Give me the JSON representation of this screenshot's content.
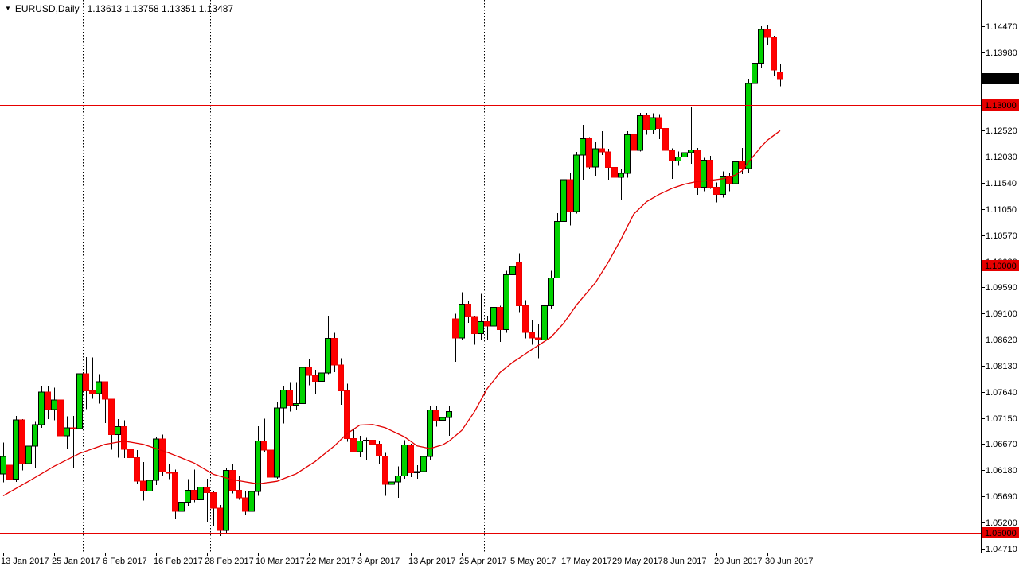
{
  "window": {
    "marker": "▼",
    "title_symbol": "EURUSD,Daily",
    "title_quotes": "1.13613 1.13758 1.13351 1.13487"
  },
  "colors": {
    "background": "#ffffff",
    "bull_body": "#00d200",
    "bull_border": "#000000",
    "bear_body": "#ff0000",
    "bear_border": "#ee0000",
    "wick": "#000000",
    "ma_line": "#e10000",
    "level_line": "#e60000",
    "level_tag_bg": "#e60000",
    "level_tag_fg": "#ffffff",
    "price_tag_bg": "#000000",
    "price_tag_fg": "#ffffff",
    "axis_line": "#000000",
    "axis_text": "#000000",
    "separator": "#000000"
  },
  "price_axis": {
    "tick_labels": [
      "1.14470",
      "1.13980",
      "1.13490",
      "1.13000",
      "1.12520",
      "1.12030",
      "1.11540",
      "1.11050",
      "1.10570",
      "1.10080",
      "1.09590",
      "1.09100",
      "1.08620",
      "1.08130",
      "1.07640",
      "1.07150",
      "1.06670",
      "1.06180",
      "1.05690",
      "1.05200",
      "1.04710"
    ]
  },
  "time_axis": {
    "step_bars": 8,
    "labels": [
      "13 Jan 2017",
      "25 Jan 2017",
      "6 Feb 2017",
      "16 Feb 2017",
      "28 Feb 2017",
      "10 Mar 2017",
      "22 Mar 2017",
      "3 Apr 2017",
      "13 Apr 2017",
      "25 Apr 2017",
      "5 May 2017",
      "17 May 2017",
      "29 May 2017",
      "8 Jun 2017",
      "20 Jun 2017",
      "30 Jun 2017"
    ]
  },
  "chart_data": {
    "type": "candlestick",
    "symbol": "EURUSD",
    "timeframe": "Daily",
    "title": "EURUSD,Daily 1.13613 1.13758 1.13351 1.13487",
    "ylim": [
      1.0471,
      1.1447
    ],
    "grid": "none",
    "legend": "none",
    "month_start_bars": [
      13,
      33,
      56,
      76,
      99,
      121
    ],
    "levels": [
      {
        "price": 1.13,
        "label": "1.13000"
      },
      {
        "price": 1.1,
        "label": "1.10000"
      },
      {
        "price": 1.05,
        "label": "1.05000"
      }
    ],
    "current_price": {
      "value": 1.13487,
      "label": "1.13487"
    },
    "last_bar_ohlc": {
      "open": "1.13613",
      "high": "1.13758",
      "low": "1.13351",
      "close": "1.13487"
    },
    "candles": [
      [
        "13 Jan 2017",
        1.0611,
        1.0669,
        1.0595,
        1.0643
      ],
      [
        "16 Jan 2017",
        1.0627,
        1.0637,
        1.0579,
        1.0601
      ],
      [
        "17 Jan 2017",
        1.0601,
        1.0719,
        1.0596,
        1.0712
      ],
      [
        "18 Jan 2017",
        1.0712,
        1.0713,
        1.0617,
        1.063
      ],
      [
        "19 Jan 2017",
        1.063,
        1.0677,
        1.0588,
        1.0663
      ],
      [
        "20 Jan 2017",
        1.0663,
        1.0708,
        1.0622,
        1.0703
      ],
      [
        "23 Jan 2017",
        1.0703,
        1.0774,
        1.0697,
        1.0764
      ],
      [
        "24 Jan 2017",
        1.0764,
        1.0775,
        1.0713,
        1.0731
      ],
      [
        "25 Jan 2017",
        1.0731,
        1.0772,
        1.0711,
        1.0749
      ],
      [
        "26 Jan 2017",
        1.0749,
        1.0768,
        1.0658,
        1.0682
      ],
      [
        "27 Jan 2017",
        1.0682,
        1.0718,
        1.0657,
        1.0697
      ],
      [
        "30 Jan 2017",
        1.0697,
        1.0719,
        1.0621,
        1.0695
      ],
      [
        "31 Jan 2017",
        1.0695,
        1.0812,
        1.0684,
        1.0798
      ],
      [
        "1 Feb 2017",
        1.0798,
        1.0829,
        1.0732,
        1.0766
      ],
      [
        "2 Feb 2017",
        1.0766,
        1.0828,
        1.0751,
        1.0761
      ],
      [
        "3 Feb 2017",
        1.0761,
        1.0797,
        1.0742,
        1.0783
      ],
      [
        "6 Feb 2017",
        1.0783,
        1.0784,
        1.0706,
        1.075
      ],
      [
        "7 Feb 2017",
        1.075,
        1.0751,
        1.0656,
        1.0684
      ],
      [
        "8 Feb 2017",
        1.0684,
        1.0713,
        1.0641,
        1.0699
      ],
      [
        "9 Feb 2017",
        1.0699,
        1.0711,
        1.064,
        1.0657
      ],
      [
        "10 Feb 2017",
        1.0657,
        1.0684,
        1.0609,
        1.0641
      ],
      [
        "13 Feb 2017",
        1.0641,
        1.0655,
        1.0591,
        1.0597
      ],
      [
        "14 Feb 2017",
        1.0597,
        1.0633,
        1.0561,
        1.0579
      ],
      [
        "15 Feb 2017",
        1.0579,
        1.0601,
        1.0551,
        1.0599
      ],
      [
        "16 Feb 2017",
        1.0599,
        1.0679,
        1.059,
        1.0676
      ],
      [
        "17 Feb 2017",
        1.0676,
        1.0684,
        1.0608,
        1.0614
      ],
      [
        "20 Feb 2017",
        1.0614,
        1.063,
        1.0601,
        1.0613
      ],
      [
        "21 Feb 2017",
        1.0613,
        1.0619,
        1.0526,
        1.0541
      ],
      [
        "22 Feb 2017",
        1.0541,
        1.0575,
        1.0494,
        1.0558
      ],
      [
        "23 Feb 2017",
        1.0558,
        1.0601,
        1.0551,
        1.058
      ],
      [
        "24 Feb 2017",
        1.058,
        1.0619,
        1.0558,
        1.0562
      ],
      [
        "27 Feb 2017",
        1.0562,
        1.0631,
        1.0551,
        1.0586
      ],
      [
        "28 Feb 2017",
        1.0586,
        1.0602,
        1.0521,
        1.0576
      ],
      [
        "1 Mar 2017",
        1.0576,
        1.0579,
        1.0513,
        1.0547
      ],
      [
        "2 Mar 2017",
        1.0547,
        1.0553,
        1.0495,
        1.0505
      ],
      [
        "3 Mar 2017",
        1.0505,
        1.0622,
        1.0501,
        1.0617
      ],
      [
        "6 Mar 2017",
        1.0617,
        1.063,
        1.0574,
        1.058
      ],
      [
        "7 Mar 2017",
        1.058,
        1.0606,
        1.0562,
        1.0566
      ],
      [
        "8 Mar 2017",
        1.0566,
        1.0578,
        1.0535,
        1.0541
      ],
      [
        "9 Mar 2017",
        1.0541,
        1.0615,
        1.0525,
        1.0578
      ],
      [
        "10 Mar 2017",
        1.0578,
        1.07,
        1.057,
        1.0672
      ],
      [
        "13 Mar 2017",
        1.0672,
        1.0714,
        1.0651,
        1.0655
      ],
      [
        "14 Mar 2017",
        1.0655,
        1.0665,
        1.06,
        1.0605
      ],
      [
        "15 Mar 2017",
        1.0605,
        1.0746,
        1.0602,
        1.0734
      ],
      [
        "16 Mar 2017",
        1.0734,
        1.0774,
        1.0705,
        1.0767
      ],
      [
        "17 Mar 2017",
        1.0767,
        1.0782,
        1.0727,
        1.0739
      ],
      [
        "20 Mar 2017",
        1.0739,
        1.0782,
        1.073,
        1.0742
      ],
      [
        "21 Mar 2017",
        1.0742,
        1.0819,
        1.0732,
        1.081
      ],
      [
        "22 Mar 2017",
        1.081,
        1.0825,
        1.0776,
        1.0795
      ],
      [
        "23 Mar 2017",
        1.0795,
        1.0805,
        1.076,
        1.0784
      ],
      [
        "24 Mar 2017",
        1.0784,
        1.0805,
        1.076,
        1.0799
      ],
      [
        "27 Mar 2017",
        1.0799,
        1.0906,
        1.0797,
        1.0864
      ],
      [
        "28 Mar 2017",
        1.0864,
        1.0874,
        1.0801,
        1.0814
      ],
      [
        "29 Mar 2017",
        1.0814,
        1.0827,
        1.074,
        1.0766
      ],
      [
        "30 Mar 2017",
        1.0766,
        1.0779,
        1.0671,
        1.0677
      ],
      [
        "31 Mar 2017",
        1.0677,
        1.0695,
        1.0651,
        1.0652
      ],
      [
        "3 Apr 2017",
        1.0652,
        1.0682,
        1.0642,
        1.0672
      ],
      [
        "4 Apr 2017",
        1.0672,
        1.0678,
        1.0637,
        1.0674
      ],
      [
        "5 Apr 2017",
        1.0674,
        1.069,
        1.0626,
        1.0666
      ],
      [
        "6 Apr 2017",
        1.0666,
        1.0672,
        1.063,
        1.0644
      ],
      [
        "7 Apr 2017",
        1.0644,
        1.065,
        1.057,
        1.0591
      ],
      [
        "10 Apr 2017",
        1.0591,
        1.0605,
        1.0569,
        1.0596
      ],
      [
        "11 Apr 2017",
        1.0596,
        1.0625,
        1.0566,
        1.0607
      ],
      [
        "12 Apr 2017",
        1.0607,
        1.0674,
        1.0602,
        1.0665
      ],
      [
        "13 Apr 2017",
        1.0665,
        1.0667,
        1.0605,
        1.0613
      ],
      [
        "14 Apr 2017",
        1.0613,
        1.0627,
        1.0602,
        1.0615
      ],
      [
        "17 Apr 2017",
        1.0615,
        1.0648,
        1.0601,
        1.0643
      ],
      [
        "18 Apr 2017",
        1.0643,
        1.0737,
        1.0636,
        1.073
      ],
      [
        "19 Apr 2017",
        1.073,
        1.0738,
        1.0699,
        1.0711
      ],
      [
        "20 Apr 2017",
        1.0711,
        1.0778,
        1.0709,
        1.0716
      ],
      [
        "21 Apr 2017",
        1.0716,
        1.0737,
        1.0682,
        1.0727
      ],
      [
        "24 Apr 2017",
        1.09,
        1.091,
        1.082,
        1.0865
      ],
      [
        "25 Apr 2017",
        1.0865,
        1.095,
        1.086,
        1.0928
      ],
      [
        "26 Apr 2017",
        1.0928,
        1.0933,
        1.0893,
        1.0905
      ],
      [
        "27 Apr 2017",
        1.0905,
        1.0906,
        1.0852,
        1.0873
      ],
      [
        "28 Apr 2017",
        1.0873,
        1.0947,
        1.086,
        1.0895
      ],
      [
        "1 May 2017",
        1.0895,
        1.0906,
        1.0861,
        1.0887
      ],
      [
        "2 May 2017",
        1.0887,
        1.0937,
        1.0883,
        1.0922
      ],
      [
        "3 May 2017",
        1.0922,
        1.0925,
        1.0857,
        1.088
      ],
      [
        "4 May 2017",
        1.088,
        1.099,
        1.0874,
        1.0983
      ],
      [
        "5 May 2017",
        1.0983,
        1.1002,
        1.096,
        1.0998
      ],
      [
        "8 May 2017",
        1.1005,
        1.1023,
        1.0913,
        1.0925
      ],
      [
        "9 May 2017",
        1.0925,
        1.0935,
        1.0864,
        1.0875
      ],
      [
        "10 May 2017",
        1.0875,
        1.0897,
        1.0852,
        1.0865
      ],
      [
        "11 May 2017",
        1.0865,
        1.089,
        1.0827,
        1.0861
      ],
      [
        "12 May 2017",
        1.0861,
        1.0935,
        1.0845,
        1.0925
      ],
      [
        "15 May 2017",
        1.0925,
        1.099,
        1.0918,
        1.0977
      ],
      [
        "16 May 2017",
        1.0977,
        1.1098,
        1.0976,
        1.1082
      ],
      [
        "17 May 2017",
        1.1082,
        1.1163,
        1.1077,
        1.116
      ],
      [
        "18 May 2017",
        1.116,
        1.1172,
        1.1075,
        1.1101
      ],
      [
        "19 May 2017",
        1.1101,
        1.1212,
        1.1097,
        1.1206
      ],
      [
        "22 May 2017",
        1.1206,
        1.1263,
        1.116,
        1.1237
      ],
      [
        "23 May 2017",
        1.1237,
        1.124,
        1.118,
        1.1184
      ],
      [
        "24 May 2017",
        1.1184,
        1.123,
        1.1168,
        1.1218
      ],
      [
        "25 May 2017",
        1.1218,
        1.1251,
        1.1206,
        1.1212
      ],
      [
        "26 May 2017",
        1.1212,
        1.1218,
        1.116,
        1.1183
      ],
      [
        "29 May 2017",
        1.1183,
        1.119,
        1.1109,
        1.1165
      ],
      [
        "30 May 2017",
        1.1165,
        1.1181,
        1.1122,
        1.1172
      ],
      [
        "31 May 2017",
        1.1172,
        1.1251,
        1.1164,
        1.1244
      ],
      [
        "1 Jun 2017",
        1.1244,
        1.125,
        1.1197,
        1.1215
      ],
      [
        "2 Jun 2017",
        1.1215,
        1.1285,
        1.1213,
        1.128
      ],
      [
        "5 Jun 2017",
        1.128,
        1.1285,
        1.1244,
        1.1253
      ],
      [
        "6 Jun 2017",
        1.1253,
        1.1284,
        1.1246,
        1.1276
      ],
      [
        "7 Jun 2017",
        1.1276,
        1.1283,
        1.1236,
        1.1256
      ],
      [
        "8 Jun 2017",
        1.1256,
        1.127,
        1.1194,
        1.1215
      ],
      [
        "9 Jun 2017",
        1.1215,
        1.1219,
        1.1162,
        1.1195
      ],
      [
        "12 Jun 2017",
        1.1195,
        1.1213,
        1.1186,
        1.1203
      ],
      [
        "13 Jun 2017",
        1.1203,
        1.1224,
        1.1193,
        1.1211
      ],
      [
        "14 Jun 2017",
        1.1211,
        1.1296,
        1.119,
        1.1216
      ],
      [
        "15 Jun 2017",
        1.1216,
        1.122,
        1.1132,
        1.1146
      ],
      [
        "16 Jun 2017",
        1.1146,
        1.1201,
        1.1139,
        1.1197
      ],
      [
        "19 Jun 2017",
        1.1197,
        1.1205,
        1.1143,
        1.1146
      ],
      [
        "20 Jun 2017",
        1.1146,
        1.1155,
        1.1118,
        1.1133
      ],
      [
        "21 Jun 2017",
        1.1133,
        1.1176,
        1.1127,
        1.1167
      ],
      [
        "22 Jun 2017",
        1.1167,
        1.1174,
        1.1139,
        1.1153
      ],
      [
        "23 Jun 2017",
        1.1153,
        1.12,
        1.1151,
        1.1194
      ],
      [
        "26 Jun 2017",
        1.1194,
        1.122,
        1.1171,
        1.1181
      ],
      [
        "27 Jun 2017",
        1.1181,
        1.1349,
        1.1172,
        1.134
      ],
      [
        "28 Jun 2017",
        1.134,
        1.1391,
        1.1324,
        1.1378
      ],
      [
        "29 Jun 2017",
        1.1378,
        1.1447,
        1.137,
        1.1441
      ],
      [
        "30 Jun 2017",
        1.1441,
        1.1449,
        1.1412,
        1.1426
      ],
      [
        "3 Jul 2017",
        1.1426,
        1.1429,
        1.1354,
        1.1365
      ],
      [
        "4 Jul 2017",
        1.13613,
        1.13758,
        1.13351,
        1.13487
      ]
    ],
    "ma_points": [
      [
        0,
        1.057
      ],
      [
        4,
        1.0597
      ],
      [
        8,
        1.0625
      ],
      [
        12,
        1.0649
      ],
      [
        16,
        1.0666
      ],
      [
        19,
        1.0672
      ],
      [
        22,
        1.0666
      ],
      [
        26,
        1.065
      ],
      [
        30,
        1.0631
      ],
      [
        33,
        1.061
      ],
      [
        36,
        1.06
      ],
      [
        40,
        1.0592
      ],
      [
        43,
        1.0597
      ],
      [
        46,
        1.0611
      ],
      [
        49,
        1.0634
      ],
      [
        52,
        1.0663
      ],
      [
        54,
        1.0686
      ],
      [
        56,
        1.0702
      ],
      [
        58,
        1.0703
      ],
      [
        60,
        1.0697
      ],
      [
        63,
        1.068
      ],
      [
        65,
        1.0663
      ],
      [
        67,
        1.0658
      ],
      [
        69,
        1.0665
      ],
      [
        70,
        1.0672
      ],
      [
        72,
        1.0692
      ],
      [
        74,
        1.0727
      ],
      [
        76,
        1.077
      ],
      [
        78,
        1.08
      ],
      [
        80,
        1.0819
      ],
      [
        83,
        1.0843
      ],
      [
        86,
        1.0866
      ],
      [
        88,
        1.0892
      ],
      [
        90,
        1.0926
      ],
      [
        93,
        1.0968
      ],
      [
        95,
        1.1006
      ],
      [
        97,
        1.1049
      ],
      [
        99,
        1.1096
      ],
      [
        101,
        1.1119
      ],
      [
        103,
        1.1133
      ],
      [
        105,
        1.1144
      ],
      [
        107,
        1.1152
      ],
      [
        109,
        1.1157
      ],
      [
        111,
        1.1159
      ],
      [
        113,
        1.1162
      ],
      [
        115,
        1.1169
      ],
      [
        116,
        1.1177
      ],
      [
        117,
        1.1193
      ],
      [
        118,
        1.1207
      ],
      [
        119,
        1.1222
      ],
      [
        120,
        1.1234
      ],
      [
        121,
        1.1243
      ],
      [
        122,
        1.1252
      ]
    ]
  }
}
